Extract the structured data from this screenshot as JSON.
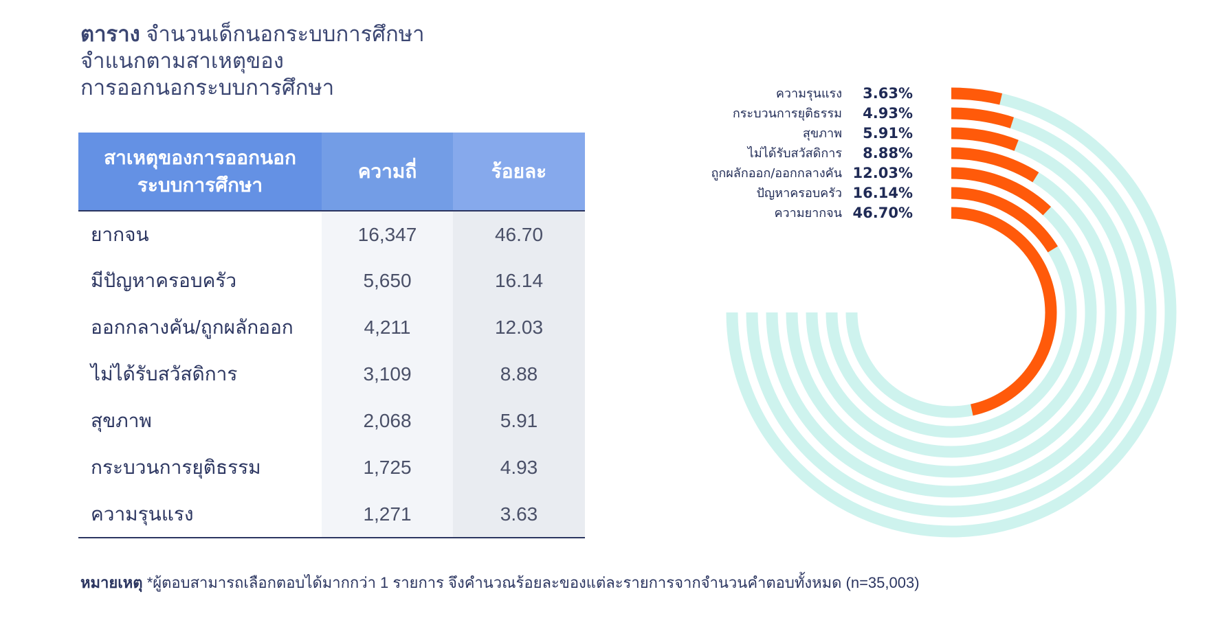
{
  "title": {
    "bold": "ตาราง",
    "line1_rest": "จำนวนเด็กนอกระบบการศึกษา",
    "line2": "จำแนกตามสาเหตุของ",
    "line3": "การออกนอกระบบการศึกษา"
  },
  "table": {
    "headers": [
      "สาเหตุของการออกนอกระบบการศึกษา",
      "ความถี่",
      "ร้อยละ"
    ],
    "rows": [
      {
        "reason": "ยากจน",
        "freq": "16,347",
        "pct": "46.70"
      },
      {
        "reason": "มีปัญหาครอบครัว",
        "freq": "5,650",
        "pct": "16.14"
      },
      {
        "reason": "ออกกลางคัน/ถูกผลักออก",
        "freq": "4,211",
        "pct": "12.03"
      },
      {
        "reason": "ไม่ได้รับสวัสดิการ",
        "freq": "3,109",
        "pct": "8.88"
      },
      {
        "reason": "สุขภาพ",
        "freq": "2,068",
        "pct": "5.91"
      },
      {
        "reason": "กระบวนการยุติธรรม",
        "freq": "1,725",
        "pct": "4.93"
      },
      {
        "reason": "ความรุนแรง",
        "freq": "1,271",
        "pct": "3.63"
      }
    ]
  },
  "note": {
    "label": "หมายเหตุ",
    "text": "*ผู้ตอบสามารถเลือกตอบได้มากกว่า 1 รายการ จึงคำนวณร้อยละของแต่ละรายการจากจำนวนคำตอบทั้งหมด (n=35,003)"
  },
  "chart_data": {
    "type": "radial-bar",
    "categories": [
      "ความรุนแรง",
      "กระบวนการยุติธรรม",
      "สุขภาพ",
      "ไม่ได้รับสวัสดิการ",
      "ถูกผลักออก/ออกกลางคัน",
      "ปัญหาครอบครัว",
      "ความยากจน"
    ],
    "values": [
      3.63,
      4.93,
      5.91,
      8.88,
      12.03,
      16.14,
      46.7
    ],
    "value_labels": [
      "3.63%",
      "4.93%",
      "5.91%",
      "8.88%",
      "12.03%",
      "16.14%",
      "46.70%"
    ],
    "track_max_percent": 75,
    "colors": {
      "bar": "#ff5a0a",
      "track": "#cef3ee"
    }
  }
}
